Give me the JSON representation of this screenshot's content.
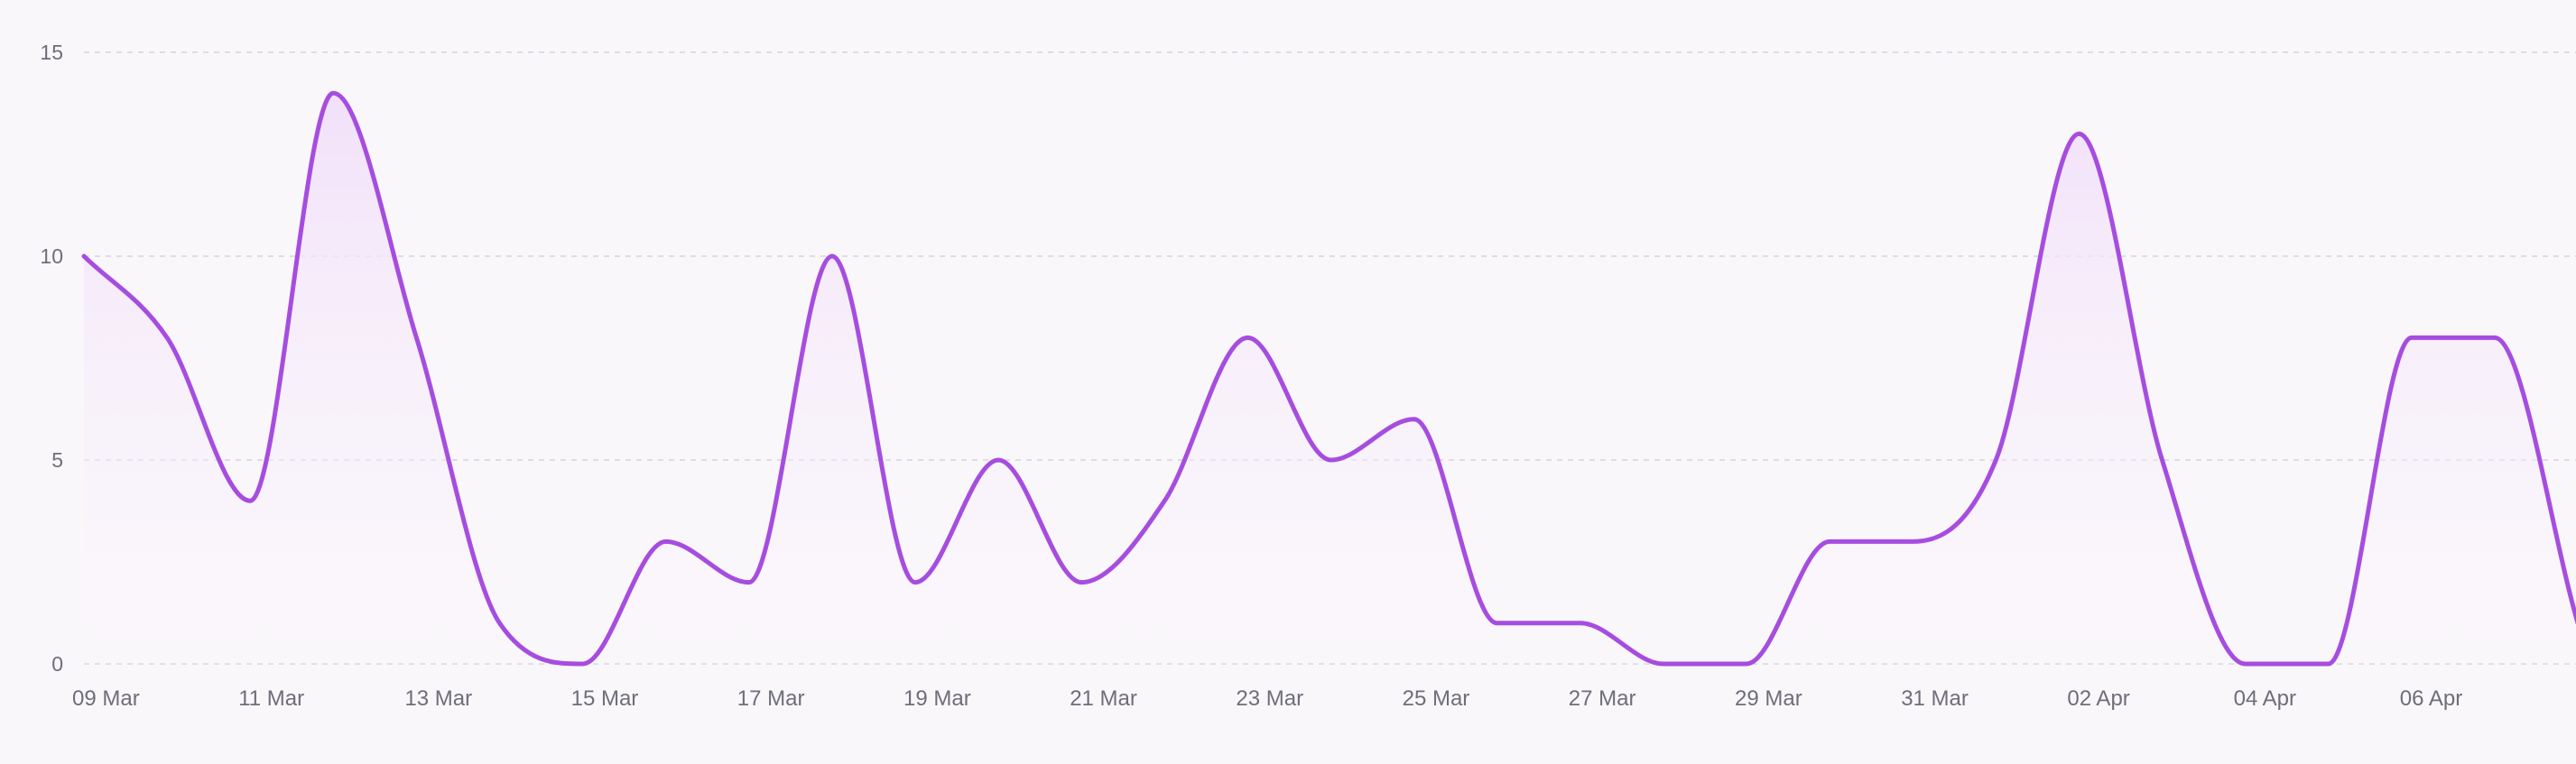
{
  "chart_data": {
    "type": "area",
    "x": [
      "09 Mar",
      "10 Mar",
      "11 Mar",
      "12 Mar",
      "13 Mar",
      "14 Mar",
      "15 Mar",
      "16 Mar",
      "17 Mar",
      "18 Mar",
      "19 Mar",
      "20 Mar",
      "21 Mar",
      "22 Mar",
      "23 Mar",
      "24 Mar",
      "25 Mar",
      "26 Mar",
      "27 Mar",
      "28 Mar",
      "29 Mar",
      "30 Mar",
      "31 Mar",
      "01 Apr",
      "02 Apr",
      "03 Apr",
      "04 Apr",
      "05 Apr",
      "06 Apr",
      "07 Apr",
      "08 Apr"
    ],
    "series": [
      {
        "values": [
          10,
          8,
          4,
          14,
          8,
          1,
          0,
          3,
          2,
          10,
          2,
          5,
          2,
          4,
          8,
          5,
          6,
          1,
          1,
          0,
          0,
          3,
          3,
          5,
          13,
          5,
          0,
          0,
          8,
          8,
          1
        ]
      }
    ],
    "x_tick_labels": [
      "09 Mar",
      "11 Mar",
      "13 Mar",
      "15 Mar",
      "17 Mar",
      "19 Mar",
      "21 Mar",
      "23 Mar",
      "25 Mar",
      "27 Mar",
      "29 Mar",
      "31 Mar",
      "02 Apr",
      "04 Apr",
      "06 Apr"
    ],
    "y_ticks": [
      0,
      5,
      10,
      15
    ],
    "ylim": [
      0,
      15
    ],
    "grid": true,
    "colors": {
      "line": "#a64de0",
      "fill_top": "#f1def9",
      "fill_bottom": "#faf7fb",
      "grid": "#dddde6",
      "axis_text": "#6e6e7a"
    }
  }
}
